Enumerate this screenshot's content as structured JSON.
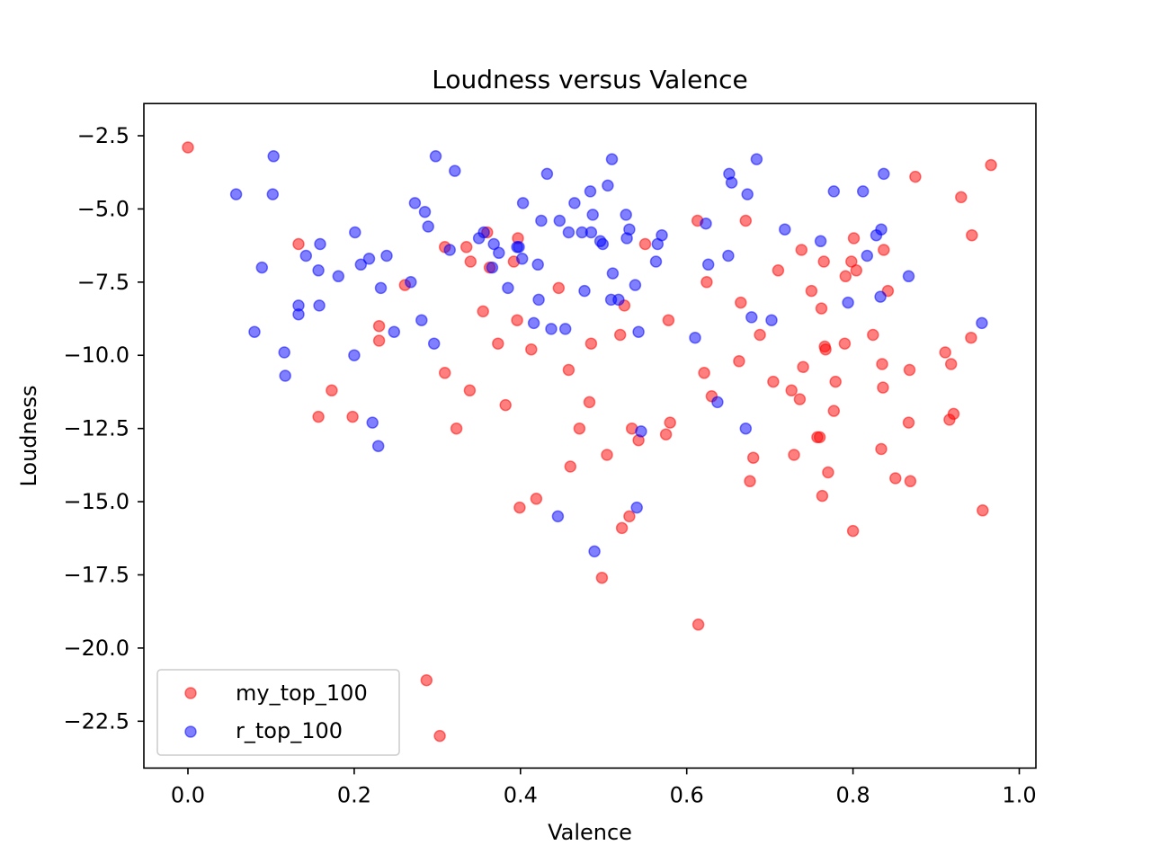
{
  "chart_data": {
    "type": "scatter",
    "title": "Loudness versus Valence",
    "xlabel": "Valence",
    "ylabel": "Loudness",
    "xlim": [
      -0.053,
      1.02
    ],
    "ylim": [
      -24.1,
      -1.4
    ],
    "xticks": [
      0.0,
      0.2,
      0.4,
      0.6,
      0.8,
      1.0
    ],
    "xtick_labels": [
      "0.0",
      "0.2",
      "0.4",
      "0.6",
      "0.8",
      "1.0"
    ],
    "yticks": [
      -2.5,
      -5.0,
      -7.5,
      -10.0,
      -12.5,
      -15.0,
      -17.5,
      -20.0,
      -22.5
    ],
    "ytick_labels": [
      "−2.5",
      "−5.0",
      "−7.5",
      "−10.0",
      "−12.5",
      "−15.0",
      "−17.5",
      "−20.0",
      "−22.5"
    ],
    "grid": false,
    "legend_position": "lower-left",
    "series": [
      {
        "name": "my_top_100",
        "color": "#ff0000",
        "points": [
          [
            0.0,
            -2.9
          ],
          [
            0.133,
            -6.2
          ],
          [
            0.157,
            -12.1
          ],
          [
            0.173,
            -11.2
          ],
          [
            0.198,
            -12.1
          ],
          [
            0.23,
            -9.0
          ],
          [
            0.23,
            -9.5
          ],
          [
            0.261,
            -7.6
          ],
          [
            0.287,
            -21.1
          ],
          [
            0.303,
            -23.0
          ],
          [
            0.309,
            -10.6
          ],
          [
            0.309,
            -6.3
          ],
          [
            0.323,
            -12.5
          ],
          [
            0.335,
            -6.3
          ],
          [
            0.339,
            -11.2
          ],
          [
            0.34,
            -6.8
          ],
          [
            0.355,
            -8.5
          ],
          [
            0.36,
            -5.8
          ],
          [
            0.363,
            -7.0
          ],
          [
            0.373,
            -9.6
          ],
          [
            0.382,
            -11.7
          ],
          [
            0.392,
            -6.8
          ],
          [
            0.396,
            -8.8
          ],
          [
            0.397,
            -6.0
          ],
          [
            0.399,
            -15.2
          ],
          [
            0.413,
            -9.8
          ],
          [
            0.419,
            -14.9
          ],
          [
            0.446,
            -7.7
          ],
          [
            0.458,
            -10.5
          ],
          [
            0.46,
            -13.8
          ],
          [
            0.471,
            -12.5
          ],
          [
            0.483,
            -11.6
          ],
          [
            0.485,
            -9.6
          ],
          [
            0.498,
            -17.6
          ],
          [
            0.504,
            -13.4
          ],
          [
            0.52,
            -9.3
          ],
          [
            0.522,
            -15.9
          ],
          [
            0.525,
            -8.3
          ],
          [
            0.531,
            -15.5
          ],
          [
            0.534,
            -12.5
          ],
          [
            0.542,
            -12.9
          ],
          [
            0.55,
            -6.2
          ],
          [
            0.575,
            -12.7
          ],
          [
            0.578,
            -8.8
          ],
          [
            0.58,
            -12.3
          ],
          [
            0.613,
            -5.4
          ],
          [
            0.614,
            -19.2
          ],
          [
            0.621,
            -10.6
          ],
          [
            0.624,
            -7.5
          ],
          [
            0.63,
            -11.4
          ],
          [
            0.663,
            -10.2
          ],
          [
            0.665,
            -8.2
          ],
          [
            0.671,
            -5.4
          ],
          [
            0.676,
            -14.3
          ],
          [
            0.68,
            -13.5
          ],
          [
            0.688,
            -9.3
          ],
          [
            0.704,
            -10.9
          ],
          [
            0.71,
            -7.1
          ],
          [
            0.726,
            -11.2
          ],
          [
            0.729,
            -13.4
          ],
          [
            0.736,
            -11.5
          ],
          [
            0.738,
            -6.4
          ],
          [
            0.74,
            -10.4
          ],
          [
            0.75,
            -7.8
          ],
          [
            0.757,
            -12.8
          ],
          [
            0.76,
            -12.8
          ],
          [
            0.762,
            -8.4
          ],
          [
            0.763,
            -14.8
          ],
          [
            0.765,
            -6.8
          ],
          [
            0.766,
            -9.7
          ],
          [
            0.767,
            -9.8
          ],
          [
            0.77,
            -14.0
          ],
          [
            0.777,
            -11.9
          ],
          [
            0.779,
            -10.9
          ],
          [
            0.79,
            -9.6
          ],
          [
            0.791,
            -7.3
          ],
          [
            0.798,
            -6.8
          ],
          [
            0.8,
            -16.0
          ],
          [
            0.801,
            -6.0
          ],
          [
            0.804,
            -7.1
          ],
          [
            0.824,
            -9.3
          ],
          [
            0.834,
            -13.2
          ],
          [
            0.835,
            -10.3
          ],
          [
            0.836,
            -11.1
          ],
          [
            0.837,
            -6.4
          ],
          [
            0.842,
            -7.8
          ],
          [
            0.851,
            -14.2
          ],
          [
            0.867,
            -12.3
          ],
          [
            0.868,
            -10.5
          ],
          [
            0.869,
            -14.3
          ],
          [
            0.875,
            -3.9
          ],
          [
            0.911,
            -9.9
          ],
          [
            0.916,
            -12.2
          ],
          [
            0.918,
            -10.3
          ],
          [
            0.921,
            -12.0
          ],
          [
            0.93,
            -4.6
          ],
          [
            0.942,
            -9.4
          ],
          [
            0.943,
            -5.9
          ],
          [
            0.956,
            -15.3
          ],
          [
            0.966,
            -3.5
          ]
        ]
      },
      {
        "name": "r_top_100",
        "color": "#0000ff",
        "points": [
          [
            0.058,
            -4.5
          ],
          [
            0.08,
            -9.2
          ],
          [
            0.089,
            -7.0
          ],
          [
            0.102,
            -4.5
          ],
          [
            0.103,
            -3.2
          ],
          [
            0.116,
            -9.9
          ],
          [
            0.117,
            -10.7
          ],
          [
            0.133,
            -8.3
          ],
          [
            0.133,
            -8.6
          ],
          [
            0.142,
            -6.6
          ],
          [
            0.157,
            -7.1
          ],
          [
            0.158,
            -8.3
          ],
          [
            0.159,
            -6.2
          ],
          [
            0.181,
            -7.3
          ],
          [
            0.2,
            -10.0
          ],
          [
            0.201,
            -5.8
          ],
          [
            0.208,
            -6.9
          ],
          [
            0.218,
            -6.7
          ],
          [
            0.222,
            -12.3
          ],
          [
            0.229,
            -13.1
          ],
          [
            0.232,
            -7.7
          ],
          [
            0.239,
            -6.6
          ],
          [
            0.248,
            -9.2
          ],
          [
            0.268,
            -7.5
          ],
          [
            0.273,
            -4.8
          ],
          [
            0.281,
            -8.8
          ],
          [
            0.285,
            -5.1
          ],
          [
            0.289,
            -5.6
          ],
          [
            0.296,
            -9.6
          ],
          [
            0.298,
            -3.2
          ],
          [
            0.315,
            -6.4
          ],
          [
            0.321,
            -3.7
          ],
          [
            0.35,
            -6.0
          ],
          [
            0.356,
            -5.8
          ],
          [
            0.366,
            -7.0
          ],
          [
            0.368,
            -6.2
          ],
          [
            0.374,
            -6.5
          ],
          [
            0.385,
            -7.7
          ],
          [
            0.396,
            -6.3
          ],
          [
            0.398,
            -6.3
          ],
          [
            0.402,
            -6.7
          ],
          [
            0.403,
            -4.8
          ],
          [
            0.416,
            -8.9
          ],
          [
            0.421,
            -6.9
          ],
          [
            0.422,
            -8.1
          ],
          [
            0.425,
            -5.4
          ],
          [
            0.432,
            -3.8
          ],
          [
            0.437,
            -9.1
          ],
          [
            0.445,
            -15.5
          ],
          [
            0.447,
            -5.4
          ],
          [
            0.454,
            -9.1
          ],
          [
            0.458,
            -5.8
          ],
          [
            0.465,
            -4.8
          ],
          [
            0.474,
            -5.8
          ],
          [
            0.477,
            -7.8
          ],
          [
            0.484,
            -4.4
          ],
          [
            0.485,
            -5.8
          ],
          [
            0.487,
            -5.2
          ],
          [
            0.489,
            -16.7
          ],
          [
            0.496,
            -6.1
          ],
          [
            0.499,
            -6.2
          ],
          [
            0.505,
            -4.2
          ],
          [
            0.509,
            -8.1
          ],
          [
            0.51,
            -3.3
          ],
          [
            0.511,
            -7.2
          ],
          [
            0.518,
            -8.1
          ],
          [
            0.527,
            -5.2
          ],
          [
            0.528,
            -6.0
          ],
          [
            0.531,
            -5.7
          ],
          [
            0.538,
            -7.6
          ],
          [
            0.54,
            -15.2
          ],
          [
            0.542,
            -9.2
          ],
          [
            0.545,
            -12.6
          ],
          [
            0.563,
            -6.8
          ],
          [
            0.565,
            -6.2
          ],
          [
            0.57,
            -5.9
          ],
          [
            0.61,
            -9.4
          ],
          [
            0.623,
            -5.5
          ],
          [
            0.626,
            -6.9
          ],
          [
            0.637,
            -11.6
          ],
          [
            0.65,
            -6.6
          ],
          [
            0.651,
            -3.8
          ],
          [
            0.654,
            -4.1
          ],
          [
            0.671,
            -12.5
          ],
          [
            0.673,
            -4.5
          ],
          [
            0.678,
            -8.7
          ],
          [
            0.684,
            -3.3
          ],
          [
            0.702,
            -8.8
          ],
          [
            0.718,
            -5.7
          ],
          [
            0.761,
            -6.1
          ],
          [
            0.777,
            -4.4
          ],
          [
            0.794,
            -8.2
          ],
          [
            0.812,
            -4.4
          ],
          [
            0.817,
            -6.6
          ],
          [
            0.828,
            -5.9
          ],
          [
            0.833,
            -8.0
          ],
          [
            0.834,
            -5.7
          ],
          [
            0.837,
            -3.8
          ],
          [
            0.867,
            -7.3
          ],
          [
            0.955,
            -8.9
          ]
        ]
      }
    ]
  }
}
